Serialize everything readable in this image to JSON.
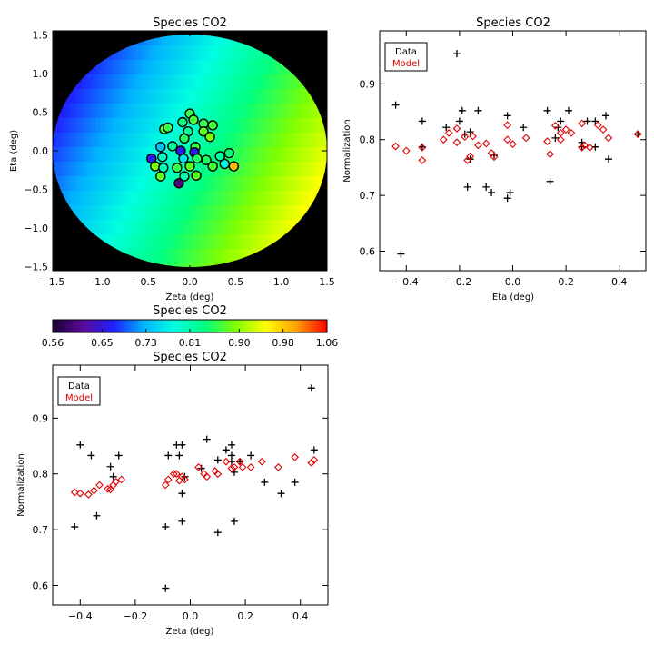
{
  "colors": {
    "data": "#000000",
    "model": "#e00000",
    "background": "#000000"
  },
  "colorbar": {
    "title": "Species CO2",
    "ticks": [
      "0.56",
      "0.65",
      "0.73",
      "0.81",
      "0.90",
      "0.98",
      "1.06"
    ],
    "range": [
      0.56,
      1.06
    ],
    "palette": [
      "#1a0033",
      "#5a0a9a",
      "#1f1fff",
      "#00b4ff",
      "#00ffe0",
      "#00ff80",
      "#80ff00",
      "#ffff00",
      "#ffa000",
      "#ff0000"
    ]
  },
  "chart_data": [
    {
      "type": "scatter",
      "id": "map",
      "title": "Species CO2",
      "xlabel": "Zeta (deg)",
      "ylabel": "Eta (deg)",
      "xlim": [
        -1.5,
        1.5
      ],
      "ylim": [
        -1.55,
        1.55
      ],
      "xticks": [
        -1.5,
        -1.0,
        -0.5,
        0.0,
        0.5,
        1.0,
        1.5
      ],
      "xticklabels": [
        "−1.5",
        "−1.0",
        "−0.5",
        "0.0",
        "0.5",
        "1.0",
        "1.5"
      ],
      "yticks": [
        -1.5,
        -1.0,
        -0.5,
        0.0,
        0.5,
        1.0,
        1.5
      ],
      "yticklabels": [
        "−1.5",
        "−1.0",
        "−0.5",
        "0.0",
        "0.5",
        "1.0",
        "1.5"
      ],
      "field": {
        "radius": 1.5,
        "center_value": 0.81,
        "value_per_zeta": 0.085,
        "value_per_eta": -0.04
      },
      "points": [
        {
          "x": -0.28,
          "y": 0.28,
          "v": 0.87
        },
        {
          "x": -0.24,
          "y": 0.3,
          "v": 0.86
        },
        {
          "x": -0.08,
          "y": 0.37,
          "v": 0.84
        },
        {
          "x": 0.0,
          "y": 0.48,
          "v": 0.86
        },
        {
          "x": 0.04,
          "y": 0.4,
          "v": 0.87
        },
        {
          "x": 0.15,
          "y": 0.35,
          "v": 0.86
        },
        {
          "x": 0.25,
          "y": 0.33,
          "v": 0.87
        },
        {
          "x": 0.15,
          "y": 0.25,
          "v": 0.88
        },
        {
          "x": 0.22,
          "y": 0.18,
          "v": 0.89
        },
        {
          "x": -0.02,
          "y": 0.25,
          "v": 0.82
        },
        {
          "x": -0.06,
          "y": 0.16,
          "v": 0.85
        },
        {
          "x": 0.06,
          "y": 0.05,
          "v": 0.86
        },
        {
          "x": -0.19,
          "y": 0.06,
          "v": 0.82
        },
        {
          "x": -0.32,
          "y": 0.05,
          "v": 0.74
        },
        {
          "x": -0.42,
          "y": -0.1,
          "v": 0.66
        },
        {
          "x": -0.3,
          "y": -0.08,
          "v": 0.8
        },
        {
          "x": -0.1,
          "y": 0.0,
          "v": 0.66
        },
        {
          "x": 0.05,
          "y": -0.02,
          "v": 0.66
        },
        {
          "x": -0.07,
          "y": -0.1,
          "v": 0.76
        },
        {
          "x": 0.08,
          "y": -0.1,
          "v": 0.85
        },
        {
          "x": 0.18,
          "y": -0.12,
          "v": 0.85
        },
        {
          "x": 0.33,
          "y": -0.07,
          "v": 0.82
        },
        {
          "x": 0.43,
          "y": -0.03,
          "v": 0.84
        },
        {
          "x": 0.48,
          "y": -0.2,
          "v": 0.99
        },
        {
          "x": 0.38,
          "y": -0.17,
          "v": 0.78
        },
        {
          "x": 0.25,
          "y": -0.2,
          "v": 0.87
        },
        {
          "x": 0.0,
          "y": -0.2,
          "v": 0.88
        },
        {
          "x": -0.38,
          "y": -0.2,
          "v": 0.89
        },
        {
          "x": -0.29,
          "y": -0.22,
          "v": 0.81
        },
        {
          "x": -0.14,
          "y": -0.22,
          "v": 0.86
        },
        {
          "x": -0.06,
          "y": -0.33,
          "v": 0.81
        },
        {
          "x": 0.07,
          "y": -0.32,
          "v": 0.88
        },
        {
          "x": -0.32,
          "y": -0.33,
          "v": 0.88
        },
        {
          "x": -0.12,
          "y": -0.42,
          "v": 0.6
        }
      ]
    },
    {
      "type": "scatter",
      "id": "eta",
      "title": "Species CO2",
      "xlabel": "Eta (deg)",
      "ylabel": "Normalization",
      "xlim": [
        -0.5,
        0.5
      ],
      "ylim": [
        0.565,
        0.995
      ],
      "xticks": [
        -0.4,
        -0.2,
        0.0,
        0.2,
        0.4
      ],
      "xticklabels": [
        "−0.4",
        "−0.2",
        "0.0",
        "0.2",
        "0.4"
      ],
      "yticks": [
        0.6,
        0.7,
        0.8,
        0.9
      ],
      "yticklabels": [
        "0.6",
        "0.7",
        "0.8",
        "0.9"
      ],
      "legend": {
        "items": [
          "Data",
          "Model"
        ],
        "position": "top-left"
      },
      "series": [
        {
          "name": "Data",
          "marker": "plus",
          "points": [
            [
              -0.44,
              0.862
            ],
            [
              -0.42,
              0.595
            ],
            [
              -0.34,
              0.833
            ],
            [
              -0.34,
              0.787
            ],
            [
              -0.25,
              0.822
            ],
            [
              -0.21,
              0.954
            ],
            [
              -0.2,
              0.833
            ],
            [
              -0.19,
              0.852
            ],
            [
              -0.18,
              0.81
            ],
            [
              -0.17,
              0.715
            ],
            [
              -0.16,
              0.814
            ],
            [
              -0.16,
              0.765
            ],
            [
              -0.13,
              0.852
            ],
            [
              -0.1,
              0.715
            ],
            [
              -0.08,
              0.705
            ],
            [
              -0.07,
              0.772
            ],
            [
              -0.02,
              0.843
            ],
            [
              -0.02,
              0.695
            ],
            [
              -0.01,
              0.705
            ],
            [
              0.04,
              0.822
            ],
            [
              0.13,
              0.852
            ],
            [
              0.14,
              0.725
            ],
            [
              0.16,
              0.803
            ],
            [
              0.17,
              0.822
            ],
            [
              0.18,
              0.833
            ],
            [
              0.21,
              0.852
            ],
            [
              0.26,
              0.795
            ],
            [
              0.26,
              0.787
            ],
            [
              0.28,
              0.833
            ],
            [
              0.31,
              0.833
            ],
            [
              0.31,
              0.787
            ],
            [
              0.35,
              0.843
            ],
            [
              0.36,
              0.765
            ],
            [
              0.47,
              0.81
            ]
          ]
        },
        {
          "name": "Model",
          "marker": "diamond",
          "points": [
            [
              -0.44,
              0.788
            ],
            [
              -0.4,
              0.78
            ],
            [
              -0.34,
              0.786
            ],
            [
              -0.34,
              0.763
            ],
            [
              -0.26,
              0.8
            ],
            [
              -0.24,
              0.812
            ],
            [
              -0.21,
              0.82
            ],
            [
              -0.21,
              0.795
            ],
            [
              -0.18,
              0.805
            ],
            [
              -0.17,
              0.763
            ],
            [
              -0.16,
              0.77
            ],
            [
              -0.15,
              0.806
            ],
            [
              -0.13,
              0.79
            ],
            [
              -0.1,
              0.793
            ],
            [
              -0.08,
              0.776
            ],
            [
              -0.07,
              0.769
            ],
            [
              -0.02,
              0.826
            ],
            [
              -0.02,
              0.8
            ],
            [
              0.0,
              0.792
            ],
            [
              0.05,
              0.803
            ],
            [
              0.13,
              0.797
            ],
            [
              0.14,
              0.774
            ],
            [
              0.16,
              0.825
            ],
            [
              0.18,
              0.812
            ],
            [
              0.18,
              0.8
            ],
            [
              0.2,
              0.818
            ],
            [
              0.22,
              0.812
            ],
            [
              0.26,
              0.829
            ],
            [
              0.26,
              0.786
            ],
            [
              0.27,
              0.79
            ],
            [
              0.29,
              0.786
            ],
            [
              0.32,
              0.826
            ],
            [
              0.34,
              0.818
            ],
            [
              0.36,
              0.803
            ],
            [
              0.47,
              0.81
            ]
          ]
        }
      ]
    },
    {
      "type": "scatter",
      "id": "zeta",
      "title": "Species CO2",
      "xlabel": "Zeta (deg)",
      "ylabel": "Normalization",
      "xlim": [
        -0.5,
        0.5
      ],
      "ylim": [
        0.565,
        0.995
      ],
      "xticks": [
        -0.4,
        -0.2,
        0.0,
        0.2,
        0.4
      ],
      "xticklabels": [
        "−0.4",
        "−0.2",
        "0.0",
        "0.2",
        "0.4"
      ],
      "yticks": [
        0.6,
        0.7,
        0.8,
        0.9
      ],
      "yticklabels": [
        "0.6",
        "0.7",
        "0.8",
        "0.9"
      ],
      "legend": {
        "items": [
          "Data",
          "Model"
        ],
        "position": "top-left"
      },
      "series": [
        {
          "name": "Data",
          "marker": "plus",
          "points": [
            [
              -0.42,
              0.705
            ],
            [
              -0.4,
              0.852
            ],
            [
              -0.36,
              0.833
            ],
            [
              -0.34,
              0.725
            ],
            [
              -0.29,
              0.813
            ],
            [
              -0.28,
              0.795
            ],
            [
              -0.26,
              0.833
            ],
            [
              -0.09,
              0.705
            ],
            [
              -0.09,
              0.595
            ],
            [
              -0.08,
              0.833
            ],
            [
              -0.05,
              0.852
            ],
            [
              -0.04,
              0.833
            ],
            [
              -0.03,
              0.852
            ],
            [
              -0.03,
              0.715
            ],
            [
              -0.03,
              0.765
            ],
            [
              -0.02,
              0.795
            ],
            [
              0.04,
              0.81
            ],
            [
              0.06,
              0.862
            ],
            [
              0.1,
              0.825
            ],
            [
              0.1,
              0.695
            ],
            [
              0.13,
              0.843
            ],
            [
              0.15,
              0.852
            ],
            [
              0.15,
              0.833
            ],
            [
              0.15,
              0.822
            ],
            [
              0.16,
              0.715
            ],
            [
              0.16,
              0.803
            ],
            [
              0.18,
              0.822
            ],
            [
              0.22,
              0.833
            ],
            [
              0.27,
              0.785
            ],
            [
              0.33,
              0.765
            ],
            [
              0.38,
              0.785
            ],
            [
              0.44,
              0.954
            ],
            [
              0.45,
              0.843
            ]
          ]
        },
        {
          "name": "Model",
          "marker": "diamond",
          "points": [
            [
              -0.42,
              0.767
            ],
            [
              -0.4,
              0.765
            ],
            [
              -0.37,
              0.763
            ],
            [
              -0.35,
              0.77
            ],
            [
              -0.33,
              0.78
            ],
            [
              -0.3,
              0.773
            ],
            [
              -0.29,
              0.772
            ],
            [
              -0.28,
              0.78
            ],
            [
              -0.27,
              0.786
            ],
            [
              -0.25,
              0.79
            ],
            [
              -0.09,
              0.78
            ],
            [
              -0.08,
              0.79
            ],
            [
              -0.06,
              0.8
            ],
            [
              -0.05,
              0.8
            ],
            [
              -0.04,
              0.788
            ],
            [
              -0.03,
              0.795
            ],
            [
              -0.02,
              0.79
            ],
            [
              0.03,
              0.812
            ],
            [
              0.05,
              0.8
            ],
            [
              0.06,
              0.795
            ],
            [
              0.09,
              0.805
            ],
            [
              0.1,
              0.8
            ],
            [
              0.13,
              0.822
            ],
            [
              0.15,
              0.81
            ],
            [
              0.16,
              0.812
            ],
            [
              0.18,
              0.822
            ],
            [
              0.19,
              0.812
            ],
            [
              0.22,
              0.812
            ],
            [
              0.26,
              0.822
            ],
            [
              0.32,
              0.812
            ],
            [
              0.38,
              0.83
            ],
            [
              0.44,
              0.82
            ],
            [
              0.45,
              0.825
            ]
          ]
        }
      ]
    }
  ]
}
